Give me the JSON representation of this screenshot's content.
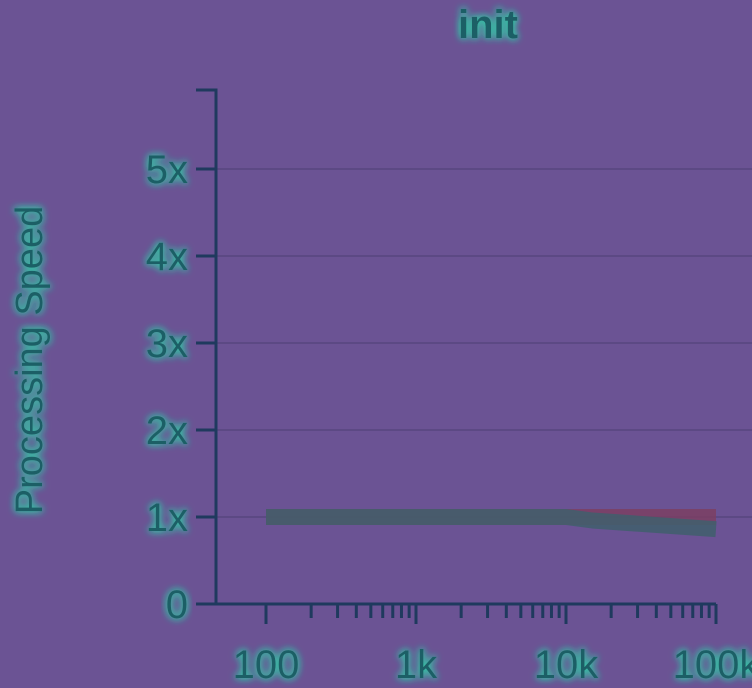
{
  "chart_data": {
    "type": "line",
    "title": "init",
    "xlabel": "",
    "ylabel": "Processing Speed",
    "x_scale": "log",
    "xlim": [
      100,
      100000
    ],
    "ylim": [
      0,
      5.9
    ],
    "grid": "horizontal",
    "x_ticks": [
      {
        "value": 100,
        "label": "100"
      },
      {
        "value": 1000,
        "label": "1k"
      },
      {
        "value": 10000,
        "label": "10k"
      },
      {
        "value": 100000,
        "label": "100k"
      }
    ],
    "y_ticks": [
      {
        "value": 0,
        "label": "0"
      },
      {
        "value": 1,
        "label": "1x"
      },
      {
        "value": 2,
        "label": "2x"
      },
      {
        "value": 3,
        "label": "3x"
      },
      {
        "value": 4,
        "label": "4x"
      },
      {
        "value": 5,
        "label": "5x"
      }
    ],
    "series": [
      {
        "color": "#7b3f63",
        "x": [
          100,
          1000,
          10000,
          15000,
          100000
        ],
        "y": [
          1.0,
          1.0,
          1.0,
          1.0,
          1.0
        ]
      },
      {
        "color": "#3f5f6c",
        "x": [
          100,
          1000,
          10000,
          15000,
          100000
        ],
        "y": [
          1.0,
          1.0,
          1.0,
          0.96,
          0.86
        ]
      }
    ]
  }
}
